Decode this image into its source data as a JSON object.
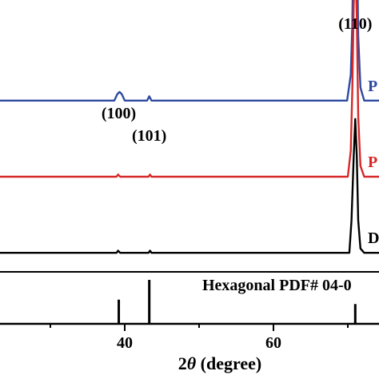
{
  "chart_data": {
    "type": "line",
    "xlabel_prefix": "2",
    "xlabel_symbol": "θ",
    "xlabel_suffix": " (degree)",
    "xlim": [
      20,
      80
    ],
    "x_ticks": [
      40,
      60
    ],
    "x_tick_labels": [
      "40",
      "60"
    ],
    "series": [
      {
        "name": "P",
        "color": "#2e4aa0",
        "baseline": 0.63,
        "points": [
          [
            20,
            0.0
          ],
          [
            38.6,
            0.0
          ],
          [
            39.0,
            0.03
          ],
          [
            39.3,
            0.04
          ],
          [
            39.6,
            0.03
          ],
          [
            40.0,
            0.0
          ],
          [
            43.0,
            0.0
          ],
          [
            43.3,
            0.02
          ],
          [
            43.6,
            0.0
          ],
          [
            69.9,
            0.0
          ],
          [
            70.4,
            0.12
          ],
          [
            70.6,
            0.35
          ],
          [
            70.8,
            0.85
          ],
          [
            71.0,
            1.0
          ],
          [
            71.2,
            0.8
          ],
          [
            71.4,
            0.3
          ],
          [
            71.7,
            0.06
          ],
          [
            72.2,
            0.0
          ],
          [
            80,
            0.0
          ]
        ]
      },
      {
        "name": "P",
        "color": "#d62828",
        "baseline": 0.35,
        "points": [
          [
            20,
            0.0
          ],
          [
            38.9,
            0.0
          ],
          [
            39.1,
            0.01
          ],
          [
            39.4,
            0.0
          ],
          [
            43.2,
            0.0
          ],
          [
            43.4,
            0.01
          ],
          [
            43.6,
            0.0
          ],
          [
            70.0,
            0.0
          ],
          [
            70.4,
            0.12
          ],
          [
            70.6,
            0.4
          ],
          [
            70.8,
            0.8
          ],
          [
            71.0,
            1.0
          ],
          [
            71.2,
            0.75
          ],
          [
            71.4,
            0.28
          ],
          [
            71.7,
            0.05
          ],
          [
            72.2,
            0.0
          ],
          [
            80,
            0.0
          ]
        ]
      },
      {
        "name": "D",
        "color": "#000000",
        "baseline": 0.07,
        "points": [
          [
            20,
            0.0
          ],
          [
            38.9,
            0.0
          ],
          [
            39.1,
            0.01
          ],
          [
            39.4,
            0.0
          ],
          [
            43.2,
            0.0
          ],
          [
            43.4,
            0.01
          ],
          [
            43.6,
            0.0
          ],
          [
            70.2,
            0.0
          ],
          [
            70.5,
            0.15
          ],
          [
            70.8,
            0.45
          ],
          [
            71.0,
            0.62
          ],
          [
            71.2,
            0.45
          ],
          [
            71.4,
            0.15
          ],
          [
            71.7,
            0.02
          ],
          [
            72.2,
            0.0
          ],
          [
            80,
            0.0
          ]
        ]
      }
    ],
    "peak_labels": [
      {
        "text": "(100)",
        "x": 39.2
      },
      {
        "text": "(101)",
        "x": 43.3
      },
      {
        "text": "(110)",
        "x": 71.0
      }
    ],
    "reference": {
      "title": "Hexagonal PDF# 04-0",
      "sticks": [
        {
          "x": 39.2,
          "intensity": 0.55
        },
        {
          "x": 43.3,
          "intensity": 1.0
        },
        {
          "x": 71.0,
          "intensity": 0.45
        }
      ]
    }
  }
}
